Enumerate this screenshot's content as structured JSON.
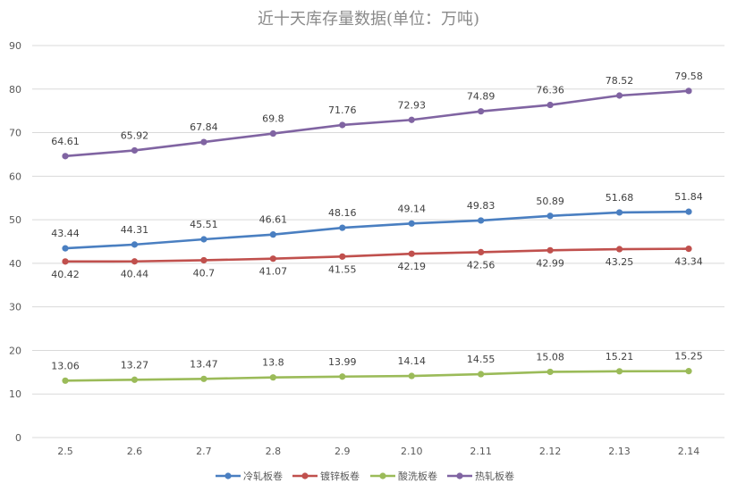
{
  "chart_data": {
    "type": "line",
    "title": "近十天库存量数据(单位：万吨)",
    "xlabel": "",
    "ylabel": "",
    "categories": [
      "2.5",
      "2.6",
      "2.7",
      "2.8",
      "2.9",
      "2.10",
      "2.11",
      "2.12",
      "2.13",
      "2.14"
    ],
    "ylim": [
      0,
      90
    ],
    "yticks": [
      0,
      10,
      20,
      30,
      40,
      50,
      60,
      70,
      80,
      90
    ],
    "grid": true,
    "legend_position": "bottom",
    "series": [
      {
        "name": "冷轧板卷",
        "color": "#4a7fc1",
        "label_pos": "above",
        "values": [
          43.44,
          44.31,
          45.51,
          46.61,
          48.16,
          49.14,
          49.83,
          50.89,
          51.68,
          51.84
        ]
      },
      {
        "name": "镀锌板卷",
        "color": "#c0504d",
        "label_pos": "below",
        "values": [
          40.42,
          40.44,
          40.7,
          41.07,
          41.55,
          42.19,
          42.56,
          42.99,
          43.25,
          43.34
        ]
      },
      {
        "name": "酸洗板卷",
        "color": "#9bbb59",
        "label_pos": "above",
        "values": [
          13.06,
          13.27,
          13.47,
          13.8,
          13.99,
          14.14,
          14.55,
          15.08,
          15.21,
          15.25
        ]
      },
      {
        "name": "热轧板卷",
        "color": "#8064a2",
        "label_pos": "above",
        "values": [
          64.61,
          65.92,
          67.84,
          69.8,
          71.76,
          72.93,
          74.89,
          76.36,
          78.52,
          79.58
        ]
      }
    ]
  }
}
